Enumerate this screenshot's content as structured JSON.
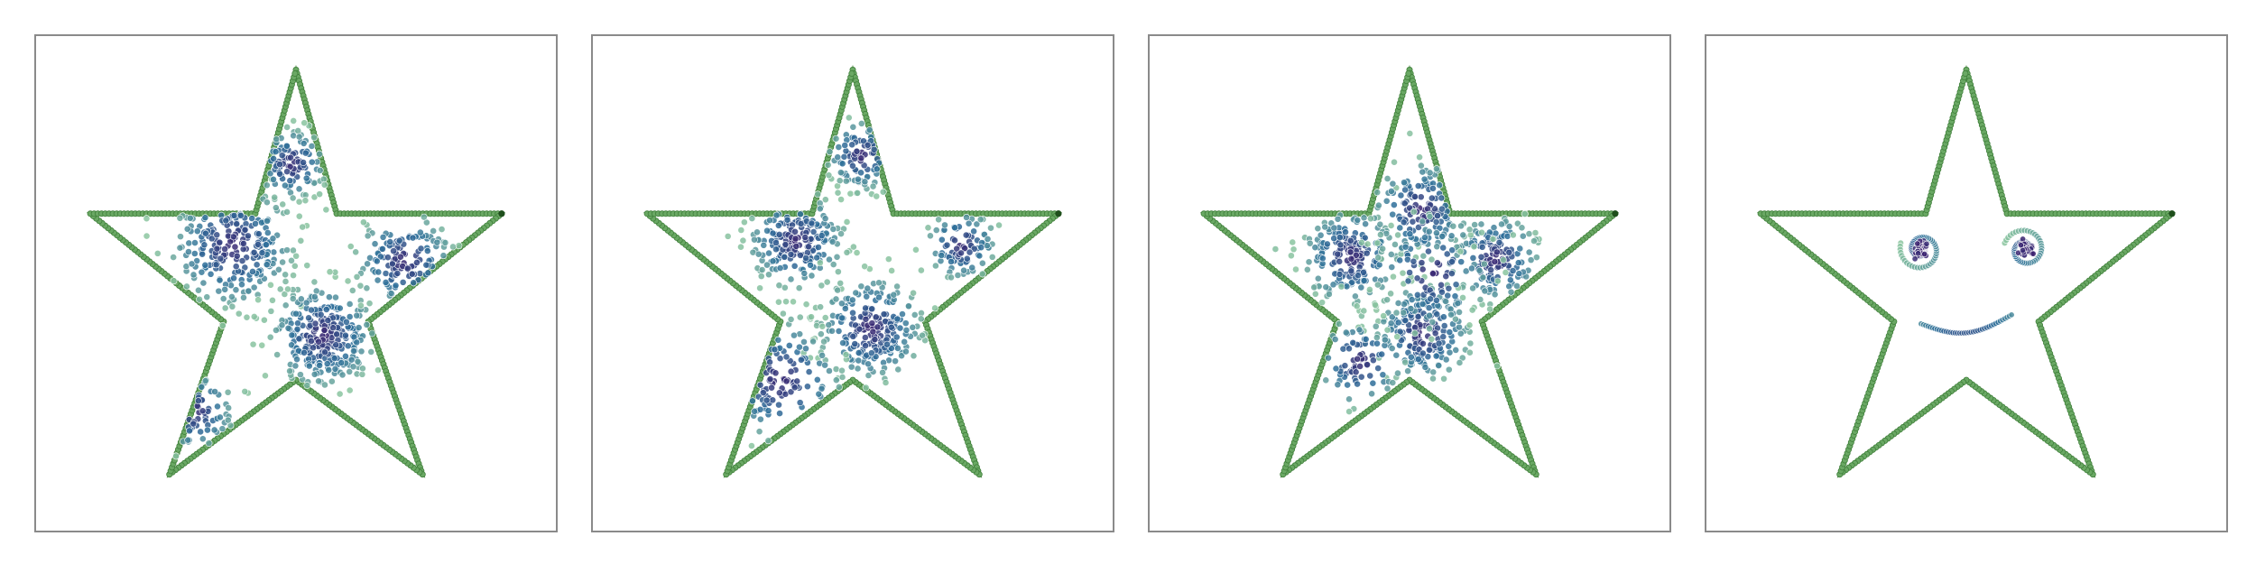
{
  "chart_data": [
    {
      "type": "scatter",
      "title": "",
      "xlabel": "",
      "ylabel": "",
      "grid": false,
      "xlim": [
        -1.15,
        1.15
      ],
      "ylim": [
        -1.05,
        1.15
      ],
      "boundary": {
        "shape": "five-pointed star",
        "vertices": [
          [
            0,
            1.0
          ],
          [
            0.18,
            0.36
          ],
          [
            0.91,
            0.36
          ],
          [
            0.32,
            -0.12
          ],
          [
            0.56,
            -0.8
          ],
          [
            0,
            -0.38
          ],
          [
            -0.56,
            -0.8
          ],
          [
            -0.32,
            -0.12
          ],
          [
            -0.91,
            0.36
          ],
          [
            -0.18,
            0.36
          ]
        ],
        "color": "#4f9a4a"
      },
      "clusters": [
        {
          "x": -0.28,
          "y": 0.22,
          "spread": 0.14,
          "count": 260
        },
        {
          "x": 0.12,
          "y": -0.18,
          "spread": 0.12,
          "count": 280
        },
        {
          "x": 0.48,
          "y": 0.15,
          "spread": 0.11,
          "count": 130
        },
        {
          "x": -0.02,
          "y": 0.58,
          "spread": 0.08,
          "count": 110
        },
        {
          "x": -0.45,
          "y": -0.52,
          "spread": 0.09,
          "count": 60
        }
      ]
    },
    {
      "type": "scatter",
      "title": "",
      "xlabel": "",
      "ylabel": "",
      "grid": false,
      "xlim": [
        -1.15,
        1.15
      ],
      "ylim": [
        -1.05,
        1.15
      ],
      "boundary": {
        "shape": "five-pointed star",
        "vertices": [
          [
            0,
            1.0
          ],
          [
            0.18,
            0.36
          ],
          [
            0.91,
            0.36
          ],
          [
            0.32,
            -0.12
          ],
          [
            0.56,
            -0.8
          ],
          [
            0,
            -0.38
          ],
          [
            -0.56,
            -0.8
          ],
          [
            -0.32,
            -0.12
          ],
          [
            -0.91,
            0.36
          ],
          [
            -0.18,
            0.36
          ]
        ],
        "color": "#4f9a4a"
      },
      "clusters": [
        {
          "x": -0.25,
          "y": 0.24,
          "spread": 0.11,
          "count": 200
        },
        {
          "x": 0.08,
          "y": -0.15,
          "spread": 0.12,
          "count": 250
        },
        {
          "x": 0.48,
          "y": 0.22,
          "spread": 0.08,
          "count": 90
        },
        {
          "x": 0.04,
          "y": 0.62,
          "spread": 0.08,
          "count": 90
        },
        {
          "x": -0.32,
          "y": -0.38,
          "spread": 0.14,
          "count": 110
        }
      ]
    },
    {
      "type": "scatter",
      "title": "",
      "xlabel": "",
      "ylabel": "",
      "grid": false,
      "xlim": [
        -1.15,
        1.15
      ],
      "ylim": [
        -1.05,
        1.15
      ],
      "boundary": {
        "shape": "five-pointed star",
        "vertices": [
          [
            0,
            1.0
          ],
          [
            0.18,
            0.36
          ],
          [
            0.91,
            0.36
          ],
          [
            0.32,
            -0.12
          ],
          [
            0.56,
            -0.8
          ],
          [
            0,
            -0.38
          ],
          [
            -0.56,
            -0.8
          ],
          [
            -0.32,
            -0.12
          ],
          [
            -0.91,
            0.36
          ],
          [
            -0.18,
            0.36
          ]
        ],
        "color": "#4f9a4a"
      },
      "clusters": [
        {
          "x": -0.26,
          "y": 0.17,
          "spread": 0.11,
          "count": 210
        },
        {
          "x": 0.38,
          "y": 0.16,
          "spread": 0.1,
          "count": 150
        },
        {
          "x": 0.06,
          "y": -0.17,
          "spread": 0.11,
          "count": 200
        },
        {
          "x": 0.05,
          "y": 0.38,
          "spread": 0.11,
          "count": 150
        },
        {
          "x": 0.1,
          "y": 0.1,
          "spread": 0.13,
          "count": 100
        },
        {
          "x": -0.22,
          "y": -0.3,
          "spread": 0.1,
          "count": 80
        }
      ]
    },
    {
      "type": "scatter",
      "title": "",
      "xlabel": "",
      "ylabel": "",
      "grid": false,
      "xlim": [
        -1.15,
        1.15
      ],
      "ylim": [
        -1.05,
        1.15
      ],
      "boundary": {
        "shape": "five-pointed star",
        "vertices": [
          [
            0,
            1.0
          ],
          [
            0.18,
            0.36
          ],
          [
            0.91,
            0.36
          ],
          [
            0.32,
            -0.12
          ],
          [
            0.56,
            -0.8
          ],
          [
            0,
            -0.38
          ],
          [
            -0.56,
            -0.8
          ],
          [
            -0.32,
            -0.12
          ],
          [
            -0.91,
            0.36
          ],
          [
            -0.18,
            0.36
          ]
        ],
        "color": "#4f9a4a"
      },
      "features": {
        "left_eye": {
          "x": -0.2,
          "y": 0.2
        },
        "right_eye": {
          "x": 0.26,
          "y": 0.2
        },
        "smile": {
          "x": -0.2,
          "y": -0.13,
          "x_end": 0.2
        }
      }
    }
  ],
  "colors": {
    "boundary_stroke": "#3f7f3a",
    "boundary_fill": "#6aa864",
    "point_dense": "#3b1f6e",
    "point_mid": "#2e6f9a",
    "point_light": "#8cc6a0",
    "frame": "#8a8a8a"
  }
}
